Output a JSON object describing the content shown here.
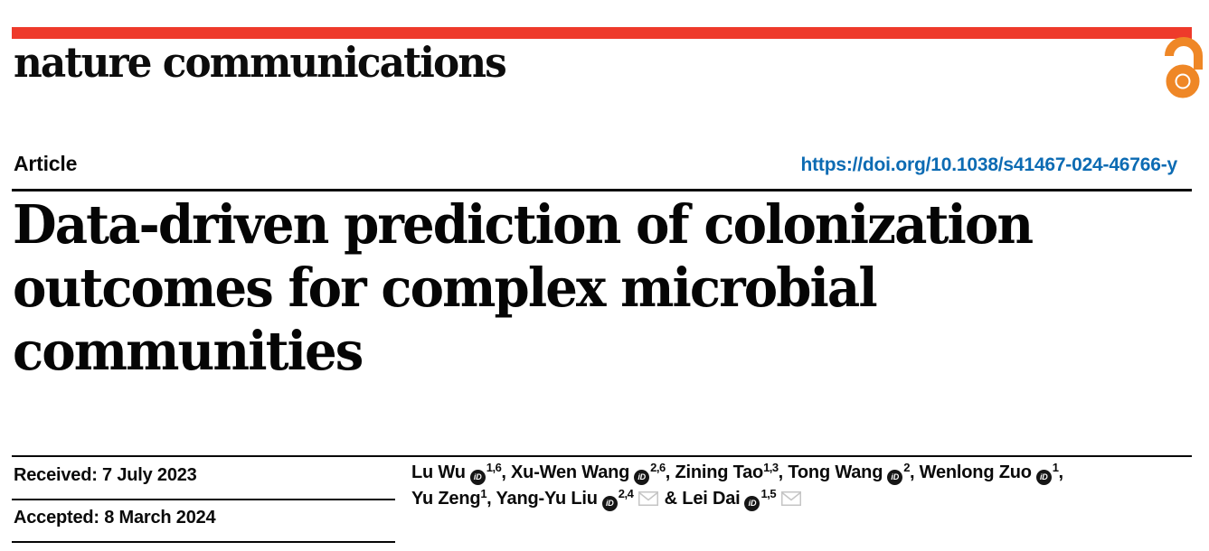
{
  "brand": {
    "journal_name": "nature communications",
    "brand_red": "#ee3a2b",
    "open_access_icon": "open-lock",
    "open_access_color": "#ef8726"
  },
  "article_header": {
    "kicker": "Article",
    "doi_link": "https://doi.org/10.1038/s41467-024-46766-y",
    "link_color": "#0c6bb3"
  },
  "title": {
    "full": "Data-driven prediction of colonization outcomes for complex microbial communities",
    "lines": [
      "Data-driven prediction of colonization",
      "outcomes for complex microbial",
      "communities"
    ]
  },
  "dates": [
    {
      "label": "Received",
      "date": "7 July 2023",
      "text": "Received: 7 July 2023"
    },
    {
      "label": "Accepted",
      "date": "8 March 2024",
      "text": "Accepted: 8 March 2024"
    }
  ],
  "authors": {
    "orcid_icon": "iD",
    "email_icon": "envelope",
    "separators": {
      "between": ", ",
      "before_last": " & "
    },
    "list": [
      {
        "name": "Lu Wu",
        "orcid": true,
        "sup": "1,6",
        "email": false
      },
      {
        "name": "Xu-Wen Wang",
        "orcid": true,
        "sup": "2,6",
        "email": false
      },
      {
        "name": "Zining Tao",
        "orcid": false,
        "sup": "1,3",
        "email": false
      },
      {
        "name": "Tong Wang",
        "orcid": true,
        "sup": "2",
        "email": false
      },
      {
        "name": "Wenlong Zuo",
        "orcid": true,
        "sup": "1",
        "email": false,
        "break_after": true
      },
      {
        "name": "Yu Zeng",
        "orcid": false,
        "sup": "1",
        "email": false
      },
      {
        "name": "Yang-Yu Liu",
        "orcid": true,
        "sup": "2,4",
        "email": true
      },
      {
        "name": "Lei Dai",
        "orcid": true,
        "sup": "1,5",
        "email": true
      }
    ]
  }
}
